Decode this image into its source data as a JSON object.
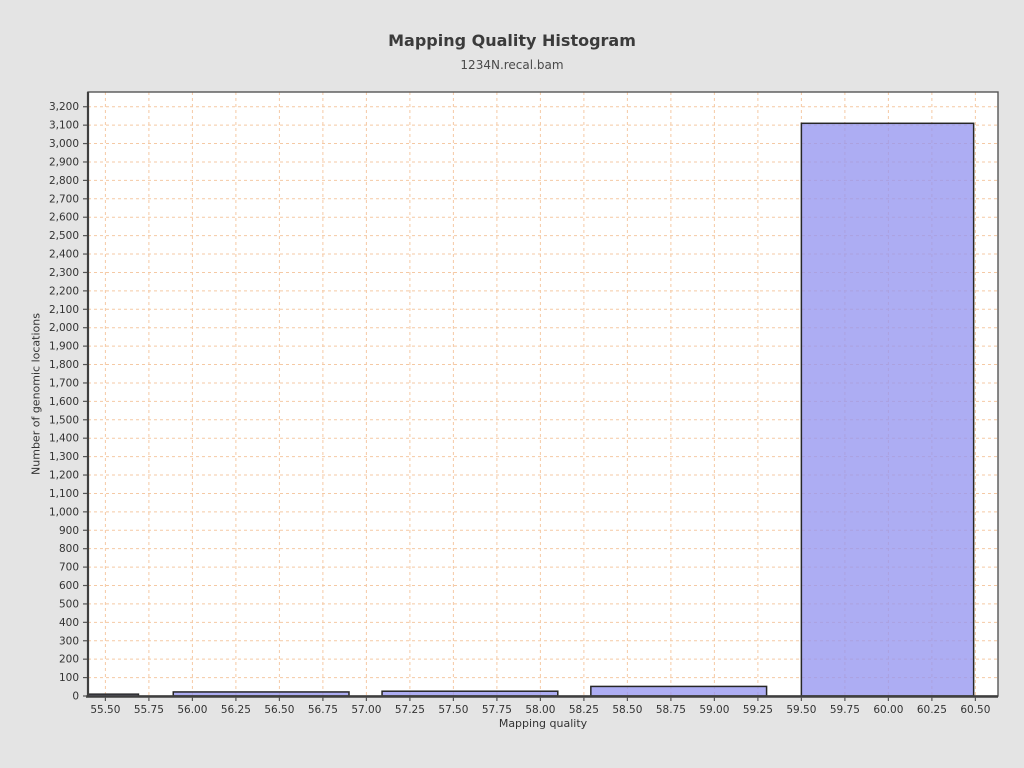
{
  "chart_data": {
    "type": "bar",
    "title": "Mapping Quality Histogram",
    "subtitle": "1234N.recal.bam",
    "xlabel": "Mapping quality",
    "ylabel": "Number of genomic locations",
    "x_domain": [
      55.4,
      60.63
    ],
    "y_domain": [
      0,
      3280
    ],
    "grid": true,
    "legend_position": "none",
    "x_tick_labels": [
      "55.50",
      "55.75",
      "56.00",
      "56.25",
      "56.50",
      "56.75",
      "57.00",
      "57.25",
      "57.50",
      "57.75",
      "58.00",
      "58.25",
      "58.50",
      "58.75",
      "59.00",
      "59.25",
      "59.50",
      "59.75",
      "60.00",
      "60.25",
      "60.50"
    ],
    "y_tick_step": 100,
    "y_tick_labels": [
      "0",
      "100",
      "200",
      "300",
      "400",
      "500",
      "600",
      "700",
      "800",
      "900",
      "1,000",
      "1,100",
      "1,200",
      "1,300",
      "1,400",
      "1,500",
      "1,600",
      "1,700",
      "1,800",
      "1,900",
      "2,000",
      "2,100",
      "2,200",
      "2,300",
      "2,400",
      "2,500",
      "2,600",
      "2,700",
      "2,800",
      "2,900",
      "3,000",
      "3,100",
      "3,200"
    ],
    "bars": [
      {
        "x0": 55.4,
        "x1": 55.69,
        "value": 10
      },
      {
        "x0": 55.89,
        "x1": 56.9,
        "value": 22
      },
      {
        "x0": 57.09,
        "x1": 58.1,
        "value": 26
      },
      {
        "x0": 58.29,
        "x1": 59.3,
        "value": 52
      },
      {
        "x0": 59.5,
        "x1": 60.49,
        "value": 3110
      }
    ],
    "colors": {
      "page_bg": "#e4e4e4",
      "plot_bg": "#ffffff",
      "grid": "#f5c9a4",
      "bar_fill": "#9696f0",
      "bar_fill_opacity": 0.78,
      "bar_stroke": "#262626",
      "plot_border": "#555555",
      "axis_line": "#3f3f3f",
      "tick": "#555555",
      "tick_text": "#333333"
    }
  }
}
